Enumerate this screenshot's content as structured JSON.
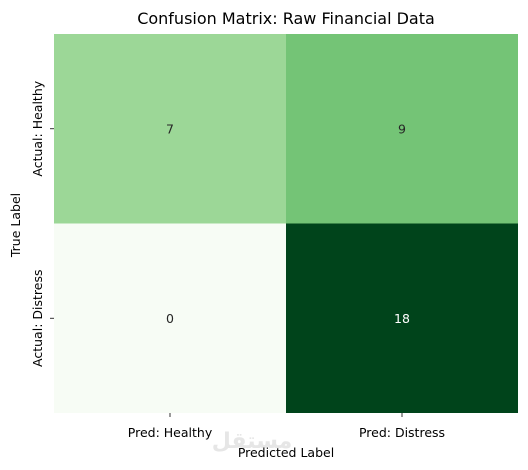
{
  "chart_data": {
    "type": "heatmap",
    "title": "Confusion Matrix: Raw Financial Data",
    "xlabel": "Predicted Label",
    "ylabel": "True Label",
    "x_categories": [
      "Pred: Healthy",
      "Pred: Distress"
    ],
    "y_categories": [
      "Actual: Healthy",
      "Actual: Distress"
    ],
    "values": [
      [
        7,
        9
      ],
      [
        0,
        18
      ]
    ],
    "colormap": "Greens",
    "vmin": 0,
    "vmax": 18,
    "colorbar": false,
    "colors": {
      "low": "#f7fcf5",
      "high": "#00441b",
      "text_dark": "#262626",
      "text_light": "#ffffff"
    }
  },
  "watermark": "مستقل"
}
